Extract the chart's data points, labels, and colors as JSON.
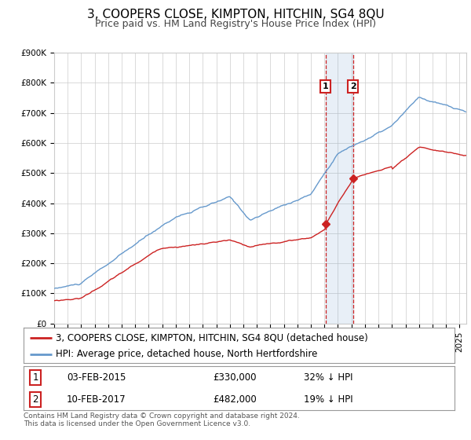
{
  "title": "3, COOPERS CLOSE, KIMPTON, HITCHIN, SG4 8QU",
  "subtitle": "Price paid vs. HM Land Registry's House Price Index (HPI)",
  "ylim": [
    0,
    900000
  ],
  "yticks": [
    0,
    100000,
    200000,
    300000,
    400000,
    500000,
    600000,
    700000,
    800000,
    900000
  ],
  "ytick_labels": [
    "£0",
    "£100K",
    "£200K",
    "£300K",
    "£400K",
    "£500K",
    "£600K",
    "£700K",
    "£800K",
    "£900K"
  ],
  "xlim_start": 1995.0,
  "xlim_end": 2025.5,
  "hpi_color": "#6699cc",
  "price_color": "#cc2222",
  "sale1_date": 2015.09,
  "sale1_price": 330000,
  "sale2_date": 2017.12,
  "sale2_price": 482000,
  "shade_start": 2015.09,
  "shade_end": 2017.12,
  "legend_house_label": "3, COOPERS CLOSE, KIMPTON, HITCHIN, SG4 8QU (detached house)",
  "legend_hpi_label": "HPI: Average price, detached house, North Hertfordshire",
  "table_row1": [
    "1",
    "03-FEB-2015",
    "£330,000",
    "32% ↓ HPI"
  ],
  "table_row2": [
    "2",
    "10-FEB-2017",
    "£482,000",
    "19% ↓ HPI"
  ],
  "footnote1": "Contains HM Land Registry data © Crown copyright and database right 2024.",
  "footnote2": "This data is licensed under the Open Government Licence v3.0.",
  "background_color": "#ffffff",
  "grid_color": "#cccccc",
  "title_fontsize": 11,
  "subtitle_fontsize": 9,
  "tick_fontsize": 7.5,
  "legend_fontsize": 8.5,
  "table_fontsize": 8.5,
  "footnote_fontsize": 6.5
}
